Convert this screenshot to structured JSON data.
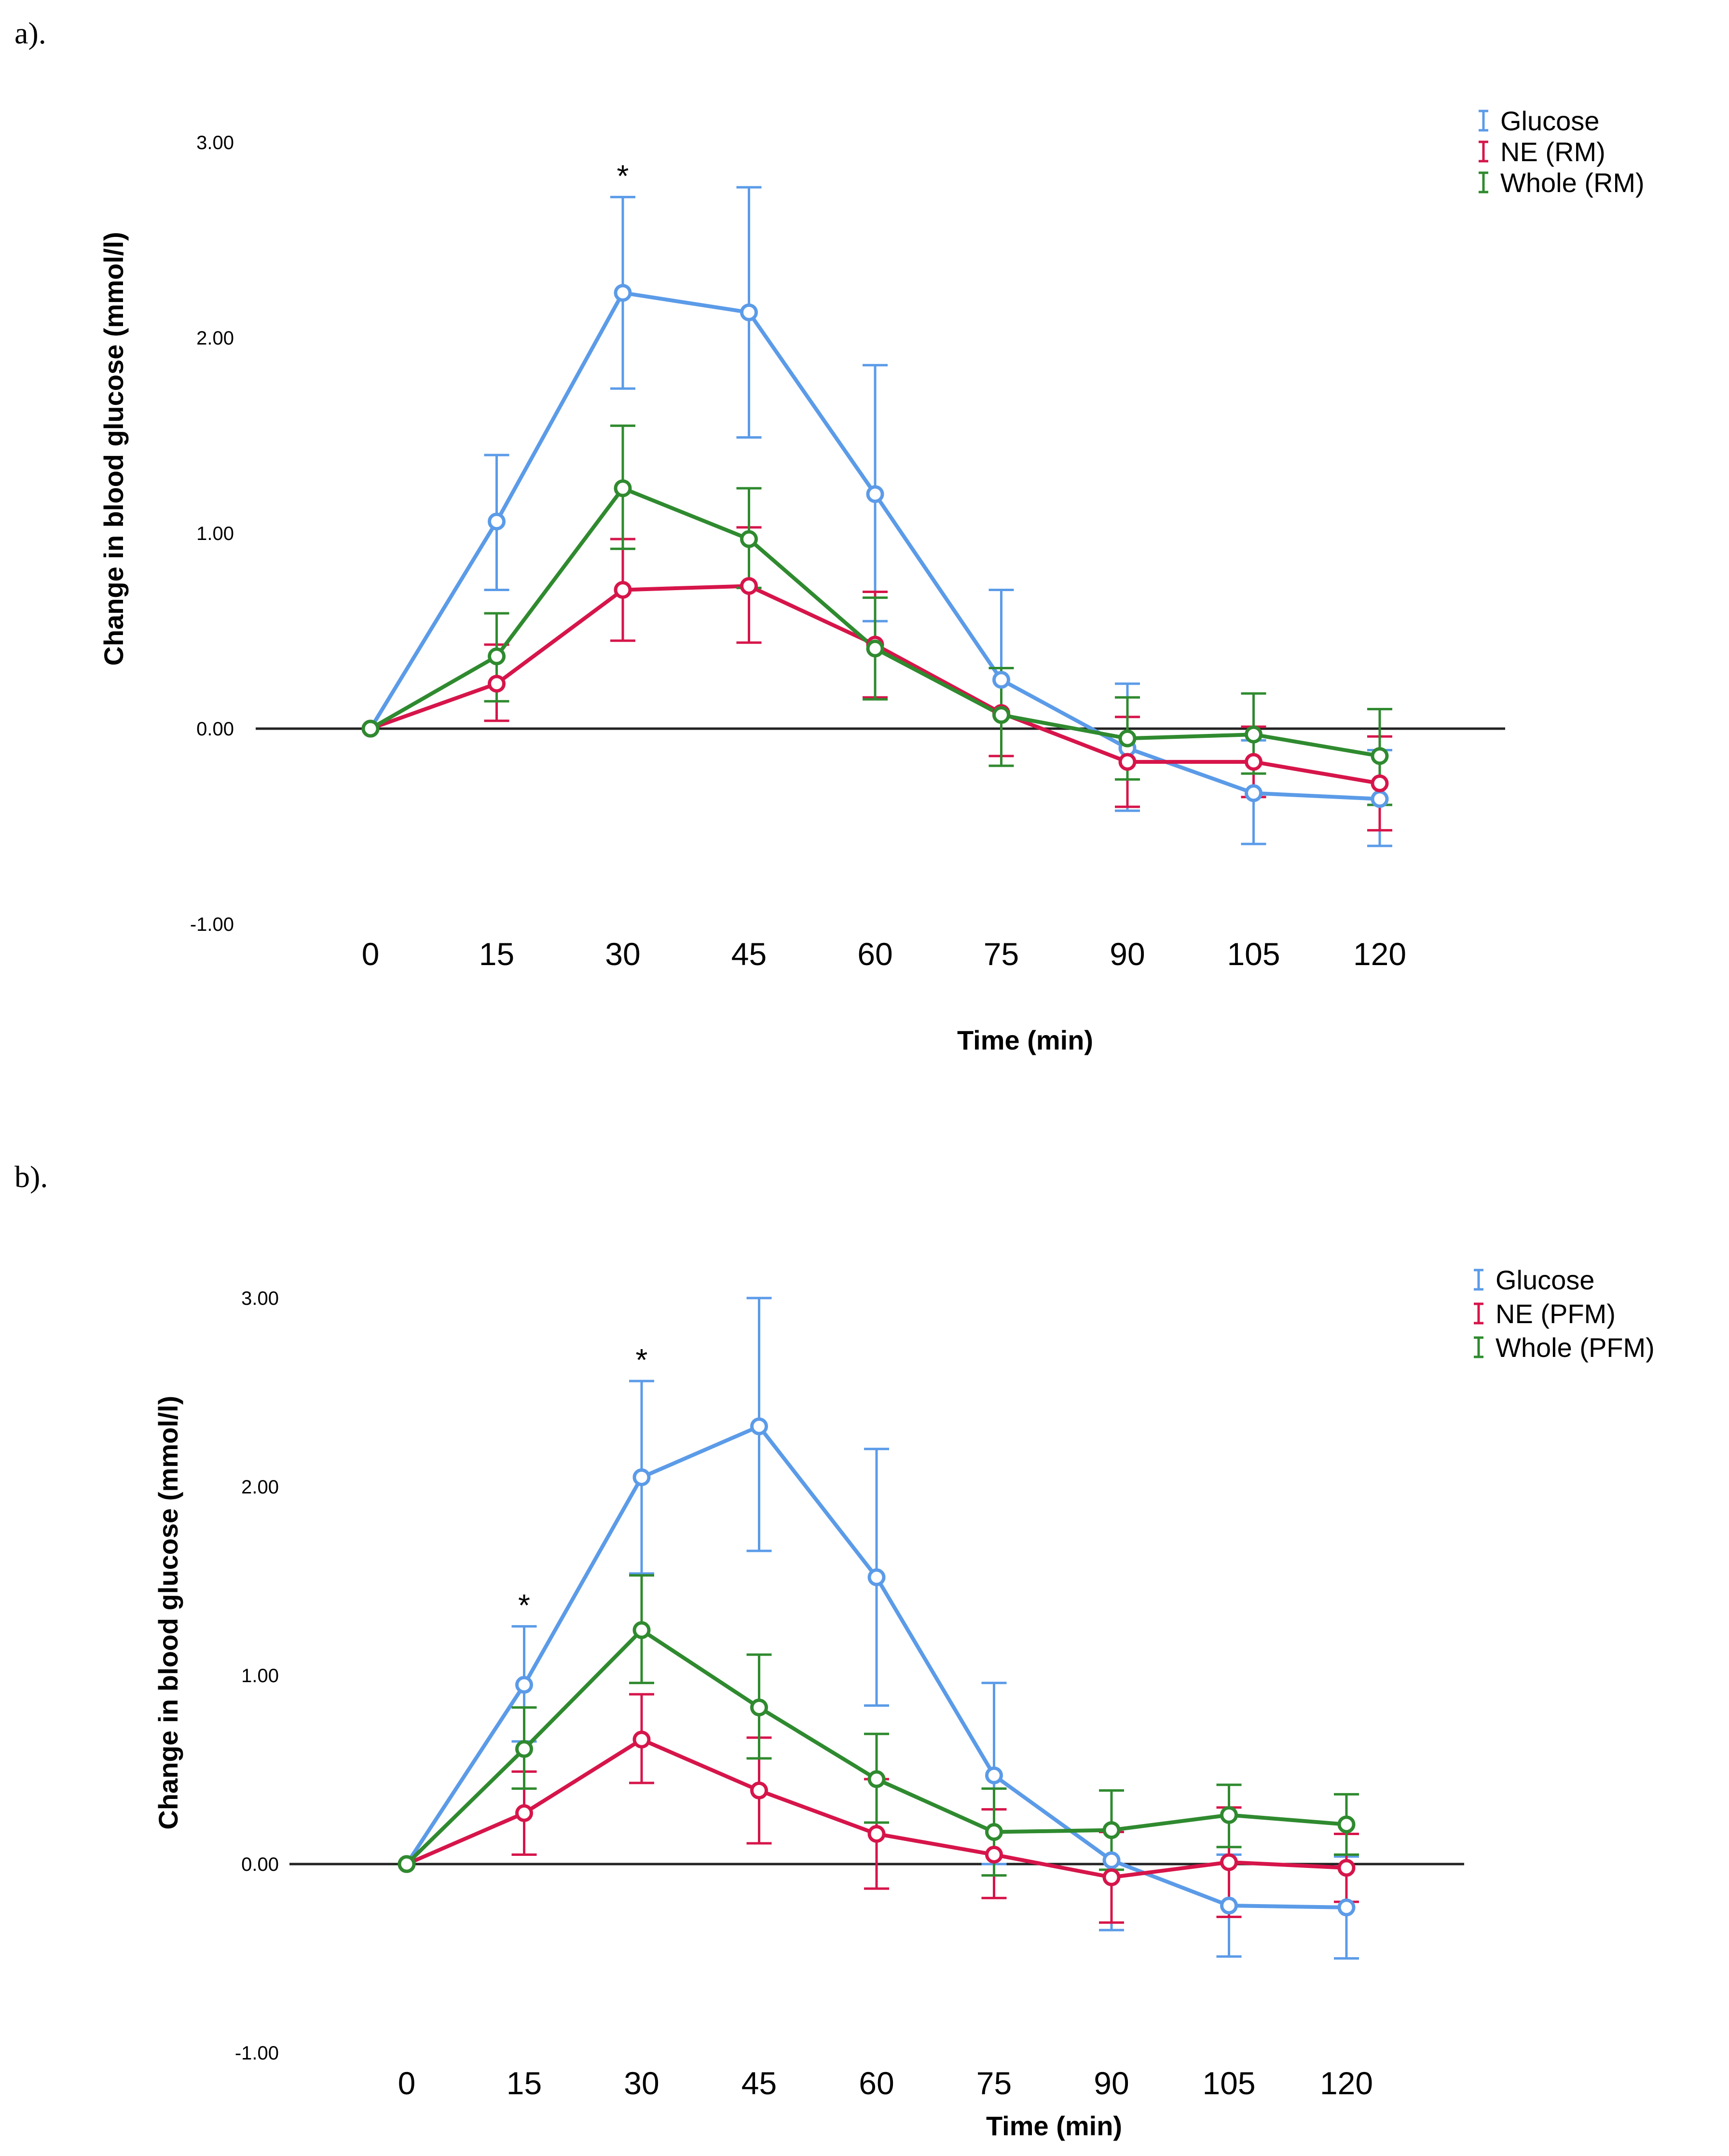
{
  "figure": {
    "panels": [
      {
        "id": "a",
        "label": "a)."
      },
      {
        "id": "b",
        "label": "b)."
      }
    ]
  },
  "colors": {
    "glucose": "#5b9be8",
    "ne": "#d6154a",
    "whole": "#2f8a2f",
    "zero_line": "#222222"
  },
  "chart_data": [
    {
      "type": "line",
      "panel_label": "a).",
      "xlabel": "Time (min)",
      "ylabel": "Change in blood glucose (mmol/l)",
      "categories": [
        "0",
        "15",
        "30",
        "45",
        "60",
        "75",
        "90",
        "105",
        "120"
      ],
      "y_ticks": [
        "3.00",
        "2.00",
        "1.00",
        "0.00",
        "-1.00"
      ],
      "ylim": [
        -1.0,
        3.0
      ],
      "grid": false,
      "legend_position": "top-right",
      "annotations": [
        {
          "category": "30",
          "text": "*"
        }
      ],
      "series": [
        {
          "name": "Glucose",
          "color": "#5b9be8",
          "values": [
            0,
            1.06,
            2.23,
            2.13,
            1.2,
            0.25,
            -0.1,
            -0.33,
            -0.36
          ],
          "err_low": [
            0,
            0.71,
            1.74,
            1.49,
            0.55,
            -0.19,
            -0.42,
            -0.59,
            -0.6
          ],
          "err_high": [
            0,
            1.4,
            2.72,
            2.77,
            1.86,
            0.71,
            0.23,
            -0.06,
            -0.11
          ]
        },
        {
          "name": "NE (RM)",
          "color": "#d6154a",
          "values": [
            0,
            0.23,
            0.71,
            0.73,
            0.43,
            0.08,
            -0.17,
            -0.17,
            -0.28
          ],
          "err_low": [
            0,
            0.04,
            0.45,
            0.44,
            0.16,
            -0.14,
            -0.4,
            -0.35,
            -0.52
          ],
          "err_high": [
            0,
            0.43,
            0.97,
            1.03,
            0.7,
            0.31,
            0.06,
            0.01,
            -0.04
          ]
        },
        {
          "name": "Whole (RM)",
          "color": "#2f8a2f",
          "values": [
            0,
            0.37,
            1.23,
            0.97,
            0.41,
            0.07,
            -0.05,
            -0.03,
            -0.14
          ],
          "err_low": [
            0,
            0.14,
            0.92,
            0.72,
            0.15,
            -0.19,
            -0.26,
            -0.23,
            -0.39
          ],
          "err_high": [
            0,
            0.59,
            1.55,
            1.23,
            0.67,
            0.31,
            0.16,
            0.18,
            0.1
          ]
        }
      ]
    },
    {
      "type": "line",
      "panel_label": "b).",
      "xlabel": "Time (min)",
      "ylabel": "Change in blood glucose (mmol/l)",
      "categories": [
        "0",
        "15",
        "30",
        "45",
        "60",
        "75",
        "90",
        "105",
        "120"
      ],
      "y_ticks": [
        "3.00",
        "2.00",
        "1.00",
        "0.00",
        "-1.00"
      ],
      "ylim": [
        -1.0,
        3.0
      ],
      "grid": false,
      "legend_position": "top-right",
      "annotations": [
        {
          "category": "15",
          "text": "*"
        },
        {
          "category": "30",
          "text": "*"
        }
      ],
      "series": [
        {
          "name": "Glucose",
          "color": "#5b9be8",
          "values": [
            0,
            0.95,
            2.05,
            2.32,
            1.52,
            0.47,
            0.02,
            -0.22,
            -0.23
          ],
          "err_low": [
            0,
            0.65,
            1.54,
            1.66,
            0.84,
            0.0,
            -0.35,
            -0.49,
            -0.5
          ],
          "err_high": [
            0,
            1.26,
            2.56,
            3.0,
            2.2,
            0.96,
            0.39,
            0.05,
            0.04
          ]
        },
        {
          "name": "NE (PFM)",
          "color": "#d6154a",
          "values": [
            0,
            0.27,
            0.66,
            0.39,
            0.16,
            0.05,
            -0.07,
            0.01,
            -0.02
          ],
          "err_low": [
            0,
            0.05,
            0.43,
            0.11,
            -0.13,
            -0.18,
            -0.31,
            -0.28,
            -0.2
          ],
          "err_high": [
            0,
            0.49,
            0.9,
            0.67,
            0.45,
            0.29,
            0.17,
            0.3,
            0.16
          ]
        },
        {
          "name": "Whole (PFM)",
          "color": "#2f8a2f",
          "values": [
            0,
            0.61,
            1.24,
            0.83,
            0.45,
            0.17,
            0.18,
            0.26,
            0.21
          ],
          "err_low": [
            0,
            0.4,
            0.96,
            0.56,
            0.22,
            -0.06,
            -0.03,
            0.09,
            0.05
          ],
          "err_high": [
            0,
            0.83,
            1.53,
            1.11,
            0.69,
            0.4,
            0.39,
            0.42,
            0.37
          ]
        }
      ]
    }
  ]
}
